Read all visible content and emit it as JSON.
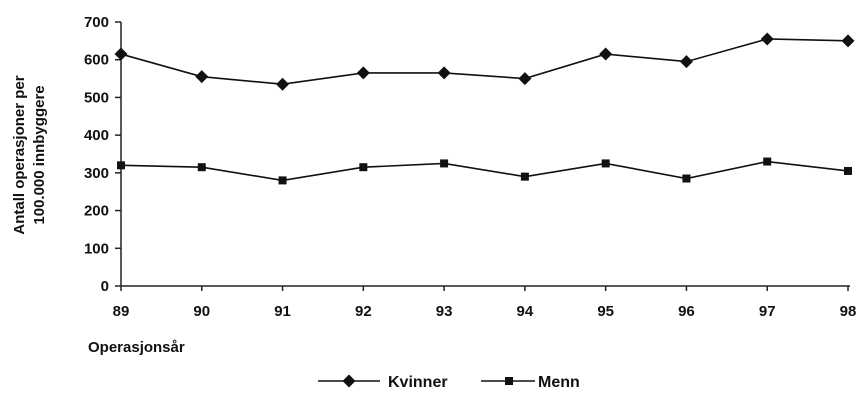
{
  "chart_data": {
    "type": "line",
    "title": "",
    "xlabel": "Operasjonsår",
    "ylabel_line1": "Antall operasjoner per",
    "ylabel_line2": "100.000 innbyggere",
    "x": [
      "89",
      "90",
      "91",
      "92",
      "93",
      "94",
      "95",
      "96",
      "97",
      "98"
    ],
    "yticks": [
      "0",
      "100",
      "200",
      "300",
      "400",
      "500",
      "600",
      "700"
    ],
    "ylim": [
      0,
      700
    ],
    "grid": false,
    "legend_position": "bottom",
    "series": [
      {
        "name": "Kvinner",
        "marker": "diamond",
        "color": "#111111",
        "values": [
          615,
          555,
          535,
          565,
          565,
          550,
          615,
          595,
          655,
          650
        ]
      },
      {
        "name": "Menn",
        "marker": "square",
        "color": "#111111",
        "values": [
          320,
          315,
          280,
          315,
          325,
          290,
          325,
          285,
          330,
          305
        ]
      }
    ]
  }
}
